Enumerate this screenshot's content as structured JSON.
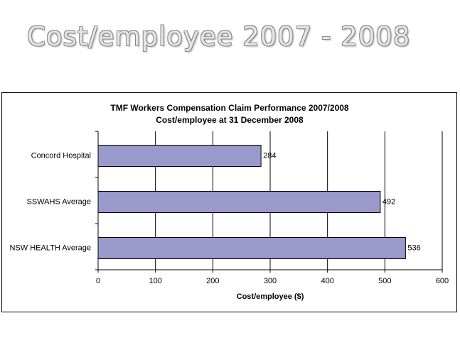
{
  "slide_title": "Cost/employee 2007 - 2008",
  "chart_data": {
    "type": "bar",
    "orientation": "horizontal",
    "title": "TMF Workers Compensation Claim Performance 2007/2008",
    "subtitle": "Cost/employee at 31 December 2008",
    "categories": [
      "Concord Hospital",
      "SSWAHS Average",
      "NSW HEALTH Average"
    ],
    "values": [
      284,
      492,
      536
    ],
    "color": "#9999cc",
    "xlabel": "Cost/employee ($)",
    "xlim": [
      0,
      600
    ],
    "xticks": [
      0,
      100,
      200,
      300,
      400,
      500,
      600
    ],
    "grid": true
  }
}
